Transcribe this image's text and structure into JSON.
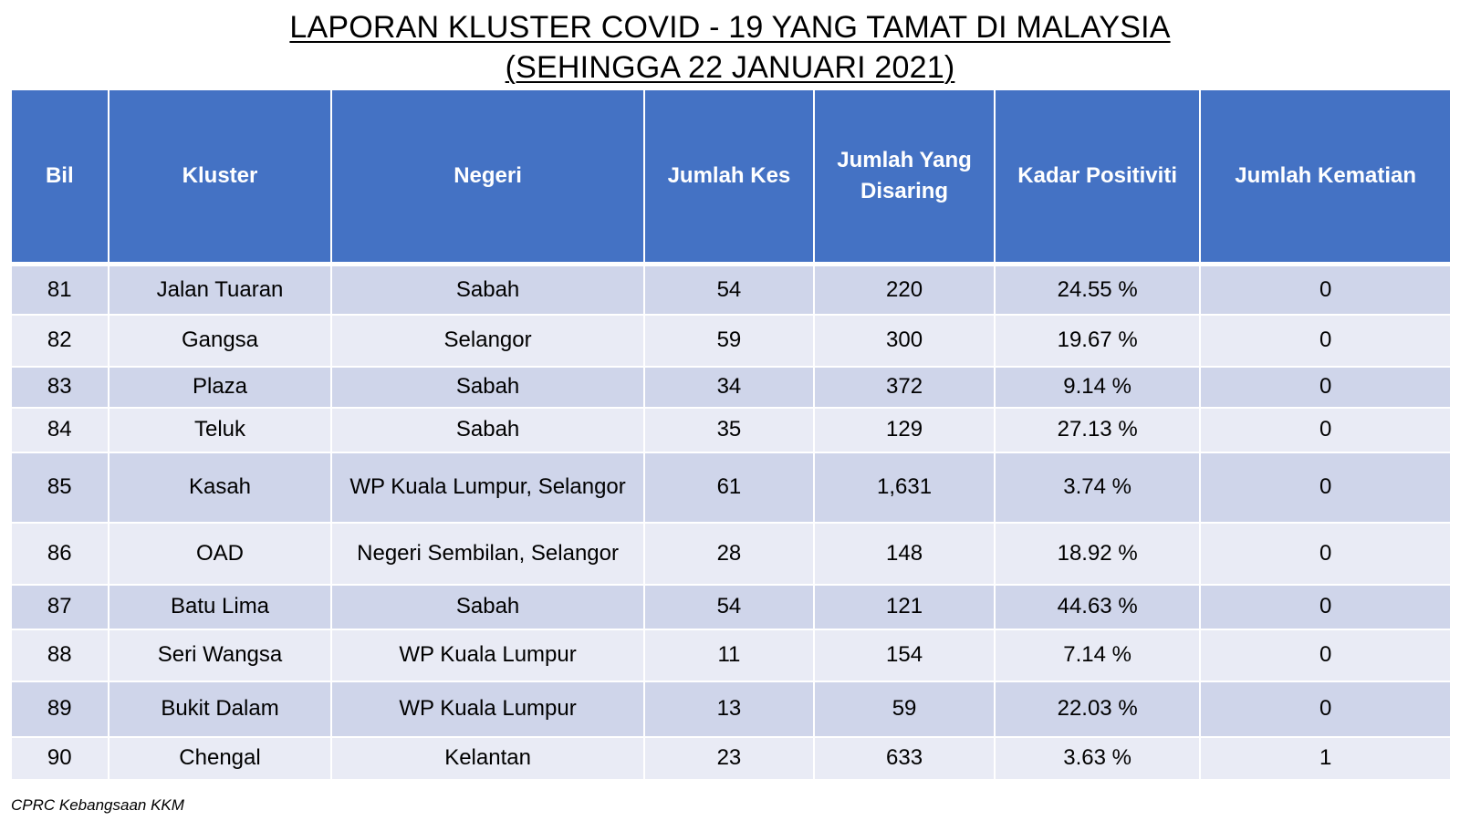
{
  "title": {
    "line1": "LAPORAN KLUSTER COVID - 19 YANG TAMAT DI MALAYSIA",
    "line2": "(SEHINGGA 22 JANUARI 2021)"
  },
  "table": {
    "headers": {
      "bil": "Bil",
      "kluster": "Kluster",
      "negeri": "Negeri",
      "jumlah_kes": "Jumlah Kes",
      "jumlah_disaring": "Jumlah Yang Disaring",
      "kadar_positiviti": "Kadar Positiviti",
      "jumlah_kematian": "Jumlah Kematian"
    },
    "rows": [
      {
        "bil": "81",
        "kluster": "Jalan Tuaran",
        "negeri": "Sabah",
        "kes": "54",
        "disaring": "220",
        "positiviti": "24.55 %",
        "kematian": "0"
      },
      {
        "bil": "82",
        "kluster": "Gangsa",
        "negeri": "Selangor",
        "kes": "59",
        "disaring": "300",
        "positiviti": "19.67 %",
        "kematian": "0"
      },
      {
        "bil": "83",
        "kluster": "Plaza",
        "negeri": "Sabah",
        "kes": "34",
        "disaring": "372",
        "positiviti": "9.14 %",
        "kematian": "0"
      },
      {
        "bil": "84",
        "kluster": "Teluk",
        "negeri": "Sabah",
        "kes": "35",
        "disaring": "129",
        "positiviti": "27.13 %",
        "kematian": "0"
      },
      {
        "bil": "85",
        "kluster": "Kasah",
        "negeri": "WP Kuala Lumpur, Selangor",
        "kes": "61",
        "disaring": "1,631",
        "positiviti": "3.74 %",
        "kematian": "0"
      },
      {
        "bil": "86",
        "kluster": "OAD",
        "negeri": "Negeri Sembilan, Selangor",
        "kes": "28",
        "disaring": "148",
        "positiviti": "18.92 %",
        "kematian": "0"
      },
      {
        "bil": "87",
        "kluster": "Batu Lima",
        "negeri": "Sabah",
        "kes": "54",
        "disaring": "121",
        "positiviti": "44.63 %",
        "kematian": "0"
      },
      {
        "bil": "88",
        "kluster": "Seri Wangsa",
        "negeri": "WP Kuala Lumpur",
        "kes": "11",
        "disaring": "154",
        "positiviti": "7.14 %",
        "kematian": "0"
      },
      {
        "bil": "89",
        "kluster": "Bukit Dalam",
        "negeri": "WP Kuala Lumpur",
        "kes": "13",
        "disaring": "59",
        "positiviti": "22.03 %",
        "kematian": "0"
      },
      {
        "bil": "90",
        "kluster": "Chengal",
        "negeri": "Kelantan",
        "kes": "23",
        "disaring": "633",
        "positiviti": "3.63 %",
        "kematian": "1"
      }
    ]
  },
  "footnote": "CPRC Kebangsaan KKM",
  "colors": {
    "header_bg": "#4472c4",
    "row_odd_bg": "#cfd5ea",
    "row_even_bg": "#e9ebf5"
  }
}
